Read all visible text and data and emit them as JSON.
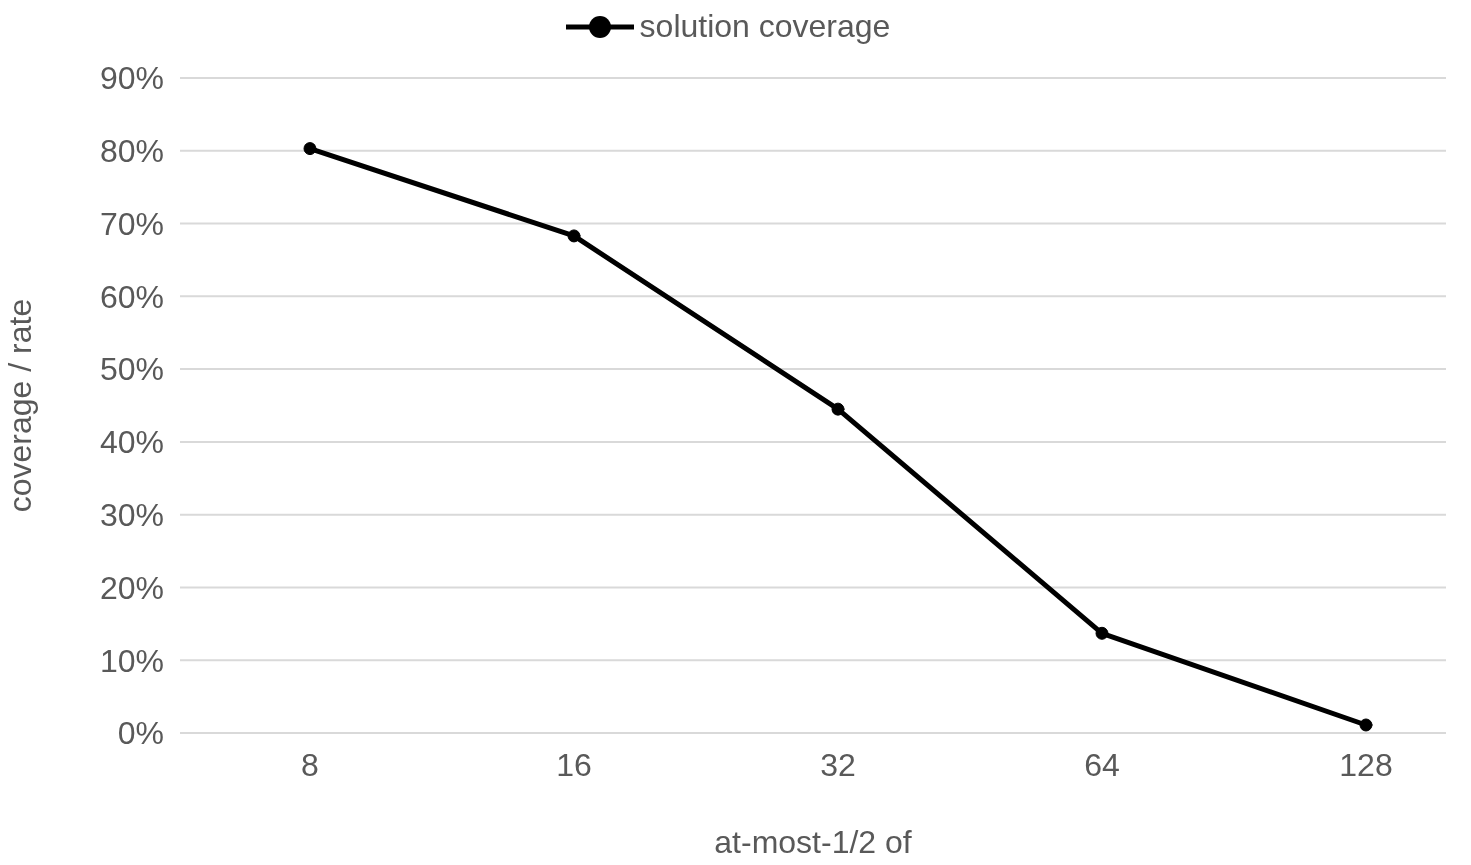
{
  "chart_data": {
    "type": "line",
    "xlabel": "at-most-1/2 of",
    "ylabel": "coverage / rate",
    "categories": [
      "8",
      "16",
      "32",
      "64",
      "128"
    ],
    "series": [
      {
        "name": "solution coverage",
        "color": "#000000",
        "values": [
          80.3,
          68.3,
          44.5,
          13.7,
          1.1
        ]
      }
    ],
    "ylim": [
      0,
      90
    ],
    "yticks": [
      {
        "value": 0,
        "label": "0%"
      },
      {
        "value": 10,
        "label": "10%"
      },
      {
        "value": 20,
        "label": "20%"
      },
      {
        "value": 30,
        "label": "30%"
      },
      {
        "value": 40,
        "label": "40%"
      },
      {
        "value": 50,
        "label": "50%"
      },
      {
        "value": 60,
        "label": "60%"
      },
      {
        "value": 70,
        "label": "70%"
      },
      {
        "value": 80,
        "label": "80%"
      },
      {
        "value": 90,
        "label": "90%"
      }
    ],
    "grid": "y",
    "legend": "top",
    "marker": "circle",
    "line_style": "solid"
  }
}
